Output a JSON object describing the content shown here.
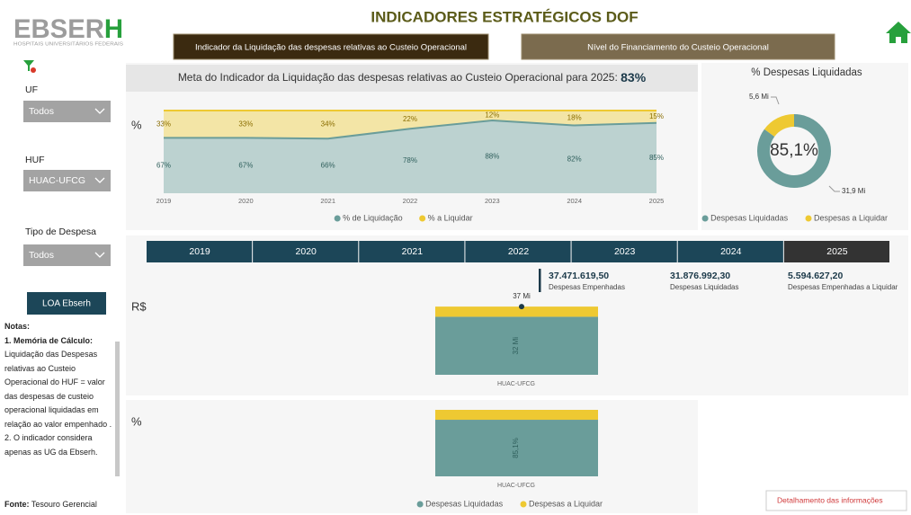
{
  "header": {
    "logo": "EBSERH",
    "logo_subtitle": "HOSPITAIS UNIVERSITÁRIOS FEDERAIS",
    "title": "INDICADORES ESTRATÉGICOS DOF",
    "tabs": [
      "Indicador da Liquidação das despesas relativas ao Custeio Operacional",
      "Nível do Financiamento do Custeio Operacional"
    ]
  },
  "filters": [
    {
      "label": "UF",
      "value": "Todos"
    },
    {
      "label": "HUF",
      "value": "HUAC-UFCG"
    },
    {
      "label": "Tipo de Despesa",
      "value": "Todos"
    }
  ],
  "loa_button": "LOA Ebserh",
  "notes": {
    "title": "Notas:",
    "items": [
      {
        "label": "1. Memória de Cálculo:",
        "text": "Liquidação das Despesas relativas ao Custeio Operacional do HUF = valor das despesas de custeio operacional liquidadas em relação ao valor empenhado ."
      },
      {
        "text": "2. O indicador considera apenas as UG da Ebserh."
      }
    ]
  },
  "source": {
    "label": "Fonte:",
    "text": "Tesouro Gerencial"
  },
  "goal": {
    "text": "Meta do Indicador da Liquidação das despesas relativas ao Custeio Operacional para 2025:",
    "value_label": "83%"
  },
  "years": {
    "items": [
      "2019",
      "2020",
      "2021",
      "2022",
      "2023",
      "2024",
      "2025"
    ],
    "selected": "2025"
  },
  "kpis": [
    {
      "value": "37.471.619,50",
      "label": "Despesas Empenhadas"
    },
    {
      "value": "31.876.992,30",
      "label": "Despesas Liquidadas"
    },
    {
      "value": "5.594.627,20",
      "label": "Despesas Empenhadas a Liquidar"
    }
  ],
  "detail_button": "Detalhamento das informações",
  "chart_data": [
    {
      "type": "area",
      "y_label": "%",
      "categories": [
        "2019",
        "2020",
        "2021",
        "2022",
        "2023",
        "2024",
        "2025"
      ],
      "ylim": [
        0,
        100
      ],
      "series": [
        {
          "name": "% de Liquidação",
          "color": "#6a9d9a",
          "values": [
            67,
            67,
            66,
            78,
            88,
            82,
            85
          ],
          "value_labels": [
            "67%",
            "67%",
            "66%",
            "78%",
            "88%",
            "82%",
            "85%"
          ]
        },
        {
          "name": "% a Liquidar",
          "color": "#eec932",
          "values": [
            33,
            33,
            34,
            22,
            12,
            18,
            15
          ],
          "value_labels": [
            "33%",
            "33%",
            "34%",
            "22%",
            "12%",
            "18%",
            "15%"
          ]
        }
      ]
    },
    {
      "type": "pie",
      "title": "% Despesas Liquidadas",
      "center_label": "85,1%",
      "categories": [
        "Despesas Liquidadas",
        "Despesas a Liquidar"
      ],
      "values": [
        31.88,
        5.59
      ],
      "value_labels": [
        "31,9 Mi",
        "5,6 Mi"
      ],
      "colors": [
        "#6a9d9a",
        "#eec932"
      ]
    },
    {
      "type": "bar",
      "y_label": "R$",
      "categories": [
        "HUAC-UFCG"
      ],
      "ylim": [
        0,
        40
      ],
      "total": {
        "value": 37.47,
        "label": "37 Mi"
      },
      "series": [
        {
          "name": "Despesas Liquidadas",
          "color": "#6a9d9a",
          "values": [
            31.88
          ],
          "value_labels": [
            "32 Mi"
          ]
        },
        {
          "name": "Despesas a Liquidar",
          "color": "#eec932",
          "values": [
            5.59
          ]
        }
      ]
    },
    {
      "type": "bar",
      "y_label": "%",
      "categories": [
        "HUAC-UFCG"
      ],
      "ylim": [
        0,
        100
      ],
      "series": [
        {
          "name": "Despesas Liquidadas",
          "color": "#6a9d9a",
          "values": [
            85.1
          ],
          "value_labels": [
            "85,1%"
          ]
        },
        {
          "name": "Despesas a Liquidar",
          "color": "#eec932",
          "values": [
            14.9
          ]
        }
      ]
    }
  ]
}
